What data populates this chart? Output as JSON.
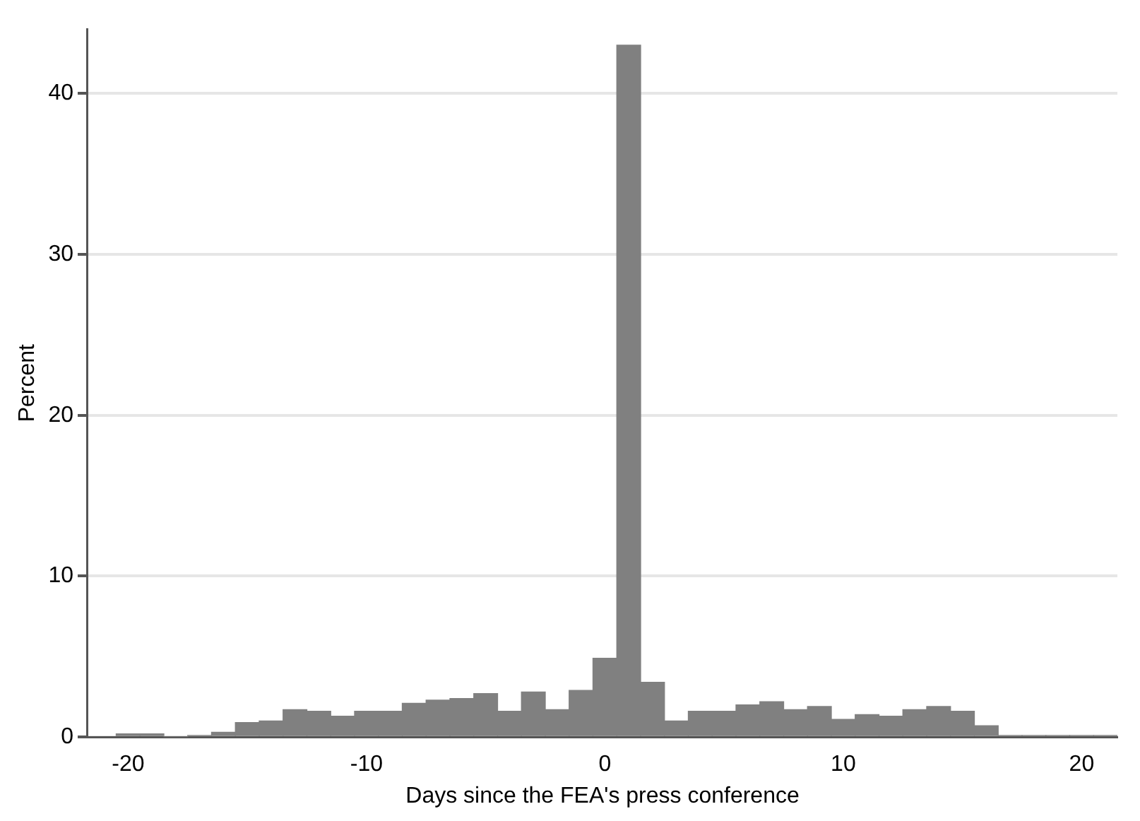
{
  "chart_data": {
    "type": "histogram",
    "xlabel": "Days since the FEA's press conference",
    "ylabel": "Percent",
    "bins": [
      -20.5,
      -19.5,
      -18.5,
      -17.5,
      -16.5,
      -15.5,
      -14.5,
      -13.5,
      -12.5,
      -11.5,
      -10.5,
      -9.5,
      -8.5,
      -7.5,
      -6.5,
      -5.5,
      -4.5,
      -3.5,
      -2.5,
      -1.5,
      -0.5,
      0.5,
      1.5,
      2.5,
      3.5,
      4.5,
      5.5,
      6.5,
      7.5,
      8.5,
      9.5,
      10.5,
      11.5,
      12.5,
      13.5,
      14.5,
      15.5,
      16.5,
      17.5,
      18.5,
      19.5,
      20.5,
      21.5
    ],
    "values": [
      0.2,
      0.2,
      0,
      0.1,
      0.3,
      0.9,
      1.0,
      1.7,
      1.6,
      1.3,
      1.6,
      1.6,
      2.1,
      2.3,
      2.4,
      2.7,
      1.6,
      2.8,
      1.7,
      2.9,
      4.9,
      43,
      3.4,
      1.0,
      1.6,
      1.6,
      2.0,
      2.2,
      1.7,
      1.9,
      1.1,
      1.4,
      1.3,
      1.7,
      1.9,
      1.6,
      0.7,
      0.1,
      0.1,
      0.1,
      0.1,
      0.1
    ],
    "color": "#808080",
    "xlim": [
      -21.7,
      21.5
    ],
    "xticks": [
      -20,
      -10,
      0,
      10,
      20
    ],
    "ylim": [
      0,
      44
    ],
    "yticks": [
      0,
      10,
      20,
      30,
      40
    ],
    "grid": "y",
    "legend": false
  }
}
